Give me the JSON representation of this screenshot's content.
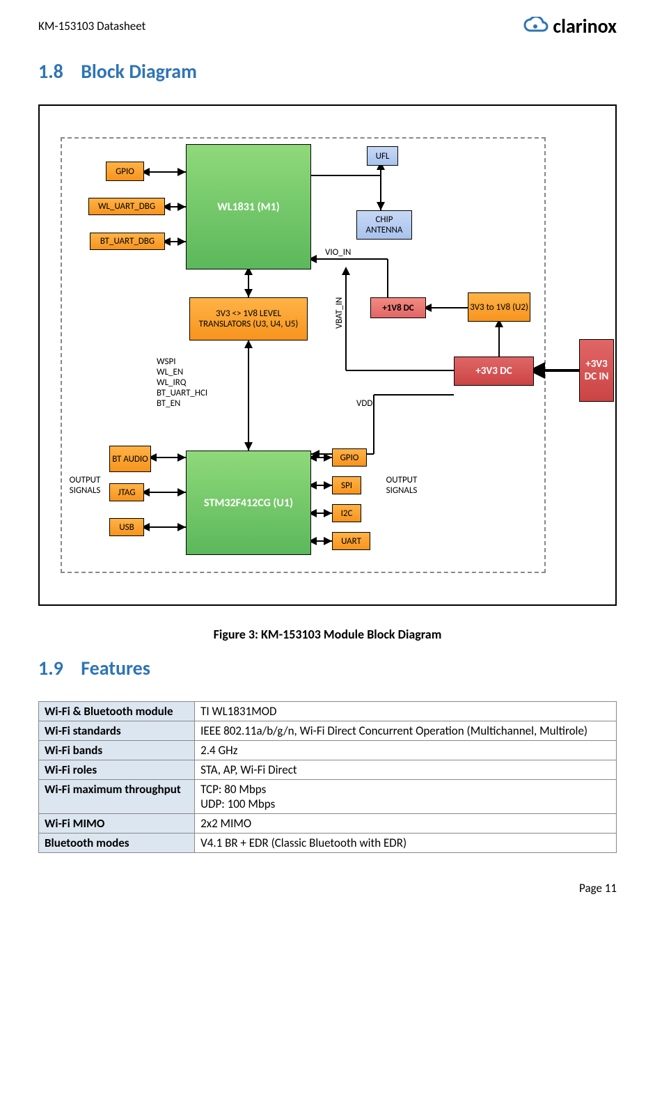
{
  "header": {
    "doc_title": "KM-153103 Datasheet",
    "logo_text": "clarinox"
  },
  "section_1_8": {
    "number": "1.8",
    "title": "Block Diagram"
  },
  "figure_caption": "Figure 3: KM-153103 Module Block Diagram",
  "section_1_9": {
    "number": "1.9",
    "title": "Features"
  },
  "diagram": {
    "blocks": {
      "gpio1": "GPIO",
      "wl_uart_dbg": "WL_UART_DBG",
      "bt_uart_dbg": "BT_UART_DBG",
      "wl1831": "WL1831 (M1)",
      "ufl": "UFL",
      "chip_antenna": "CHIP ANTENNA",
      "level_translators": "3V3 <> 1V8 LEVEL TRANSLATORS (U3, U4, U5)",
      "plus1v8": "+1V8 DC",
      "v3to1v8": "3V3 to 1V8 (U2)",
      "plus3v3": "+3V3 DC",
      "plus3v3in": "+3V3 DC IN",
      "bt_audio": "BT AUDIO",
      "jtag": "JTAG",
      "usb": "USB",
      "stm32": "STM32F412CG (U1)",
      "gpio2": "GPIO",
      "spi": "SPI",
      "i2c": "I2C",
      "uart": "UART"
    },
    "labels": {
      "vio_in": "VIO_IN",
      "vbat_in": "VBAT_IN",
      "vdd": "VDD",
      "signals_list": "WSPI\nWL_EN\nWL_IRQ\nBT_UART_HCI\nBT_EN",
      "output_signals_left": "OUTPUT SIGNALS",
      "output_signals_right": "OUTPUT SIGNALS"
    }
  },
  "features": {
    "rows": [
      {
        "key": "Wi-Fi & Bluetooth module",
        "val": "TI WL1831MOD"
      },
      {
        "key": "Wi-Fi standards",
        "val": "IEEE 802.11a/b/g/n, Wi-Fi Direct Concurrent Operation (Multichannel, Multirole)"
      },
      {
        "key": "Wi-Fi bands",
        "val": "2.4 GHz"
      },
      {
        "key": "Wi-Fi roles",
        "val": "STA, AP, Wi-Fi Direct"
      },
      {
        "key": "Wi-Fi maximum throughput",
        "val": "TCP: 80 Mbps\nUDP: 100 Mbps"
      },
      {
        "key": "Wi-Fi MIMO",
        "val": "2x2 MIMO"
      },
      {
        "key": "Bluetooth modes",
        "val": "V4.1 BR + EDR (Classic Bluetooth with EDR)"
      }
    ]
  },
  "footer": {
    "page": "Page 11"
  },
  "colors": {
    "heading_blue": "#2e74b5",
    "orange": "#f7941d",
    "green": "#5bb85b",
    "blue_block": "#a8c3ee",
    "red_block": "#e06666",
    "table_key_bg": "#dce6f0"
  }
}
